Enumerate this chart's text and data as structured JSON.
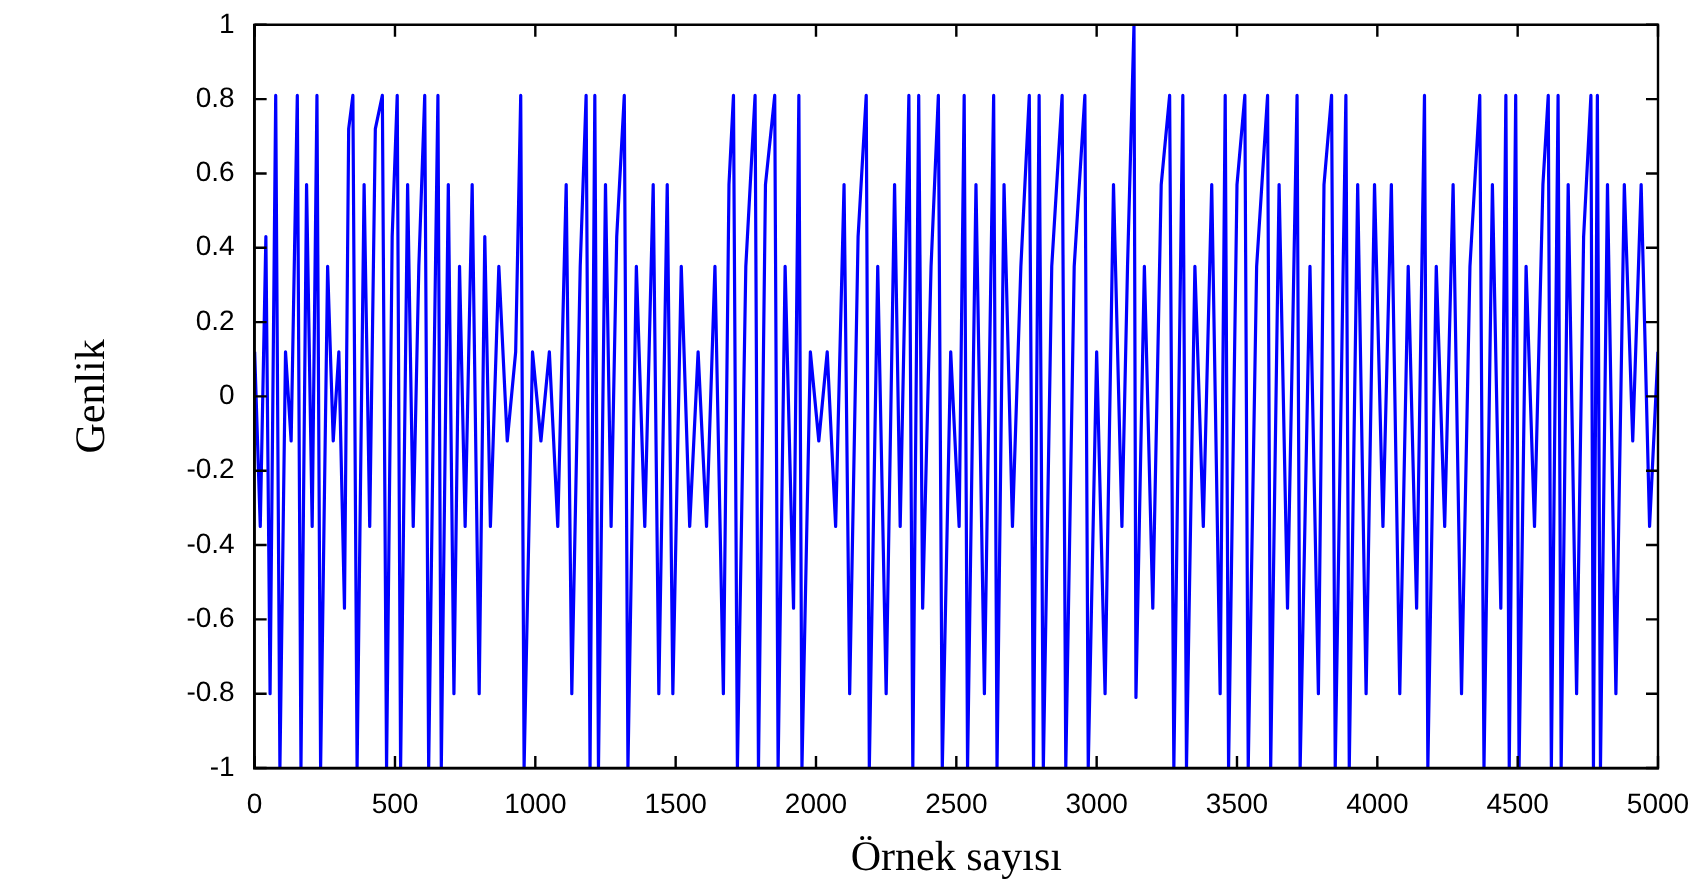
{
  "chart_data": {
    "type": "line",
    "xlabel": "Örnek sayısı",
    "ylabel": "Genlik",
    "xlim": [
      0,
      5000
    ],
    "xticks": [
      0,
      500,
      1000,
      1500,
      2000,
      2500,
      3000,
      3500,
      4000,
      4500,
      5000
    ],
    "ylim": [
      -1,
      1
    ],
    "yticks": [
      -1,
      -0.8,
      -0.6,
      -0.4,
      -0.2,
      0,
      0.2,
      0.4,
      0.6,
      0.8,
      1
    ],
    "marker": "none",
    "line_style": "solid",
    "series": [
      {
        "color": "#0000ff",
        "x": [
          0,
          20,
          40,
          55,
          75,
          90,
          110,
          130,
          152,
          165,
          185,
          205,
          222,
          235,
          260,
          280,
          300,
          320,
          335,
          350,
          365,
          390,
          410,
          430,
          455,
          470,
          490,
          508,
          520,
          545,
          565,
          585,
          606,
          620,
          640,
          653,
          665,
          690,
          710,
          730,
          750,
          775,
          800,
          820,
          840,
          870,
          900,
          930,
          948,
          960,
          990,
          1020,
          1050,
          1080,
          1110,
          1130,
          1160,
          1181,
          1195,
          1212,
          1225,
          1250,
          1270,
          1290,
          1317,
          1330,
          1360,
          1390,
          1420,
          1440,
          1470,
          1490,
          1520,
          1550,
          1580,
          1610,
          1640,
          1670,
          1690,
          1706,
          1720,
          1750,
          1783,
          1795,
          1820,
          1853,
          1865,
          1890,
          1920,
          1939,
          1950,
          1980,
          2010,
          2040,
          2070,
          2100,
          2120,
          2150,
          2179,
          2190,
          2220,
          2250,
          2280,
          2300,
          2331,
          2345,
          2366,
          2380,
          2410,
          2436,
          2450,
          2480,
          2510,
          2528,
          2540,
          2570,
          2600,
          2633,
          2645,
          2670,
          2700,
          2730,
          2760,
          2775,
          2795,
          2810,
          2840,
          2877,
          2890,
          2920,
          2958,
          2970,
          3000,
          3030,
          3060,
          3090,
          3110,
          3133,
          3140,
          3170,
          3200,
          3230,
          3260,
          3275,
          3307,
          3320,
          3350,
          3380,
          3410,
          3440,
          3458,
          3470,
          3500,
          3528,
          3540,
          3570,
          3609,
          3620,
          3650,
          3680,
          3714,
          3725,
          3760,
          3790,
          3810,
          3837,
          3850,
          3888,
          3900,
          3930,
          3960,
          3990,
          4020,
          4050,
          4080,
          4110,
          4140,
          4168,
          4180,
          4210,
          4240,
          4270,
          4300,
          4330,
          4365,
          4380,
          4410,
          4440,
          4458,
          4470,
          4493,
          4505,
          4530,
          4560,
          4590,
          4609,
          4620,
          4644,
          4655,
          4680,
          4710,
          4735,
          4761,
          4770,
          4784,
          4795,
          4820,
          4850,
          4880,
          4910,
          4940,
          4970,
          5000
        ],
        "values": [
          0.12,
          -0.35,
          0.43,
          -0.8,
          0.81,
          -1,
          0.12,
          -0.12,
          0.81,
          -1,
          0.57,
          -0.35,
          0.81,
          -1,
          0.35,
          -0.12,
          0.12,
          -0.57,
          0.72,
          0.81,
          -1,
          0.57,
          -0.35,
          0.72,
          0.81,
          -1,
          0.43,
          0.81,
          -1,
          0.57,
          -0.35,
          0.35,
          0.81,
          -1,
          0.12,
          0.81,
          -1,
          0.57,
          -0.8,
          0.35,
          -0.35,
          0.57,
          -0.8,
          0.43,
          -0.35,
          0.35,
          -0.12,
          0.12,
          0.81,
          -1,
          0.12,
          -0.12,
          0.12,
          -0.35,
          0.57,
          -0.8,
          0.35,
          0.81,
          -1,
          0.81,
          -1,
          0.57,
          -0.35,
          0.43,
          0.81,
          -1,
          0.35,
          -0.35,
          0.57,
          -0.8,
          0.57,
          -0.8,
          0.35,
          -0.35,
          0.12,
          -0.35,
          0.35,
          -0.8,
          0.57,
          0.81,
          -1,
          0.35,
          0.81,
          -1,
          0.57,
          0.81,
          -1,
          0.35,
          -0.57,
          0.81,
          -1,
          0.12,
          -0.12,
          0.12,
          -0.35,
          0.57,
          -0.8,
          0.43,
          0.81,
          -1,
          0.35,
          -0.8,
          0.57,
          -0.35,
          0.81,
          -1,
          0.81,
          -0.57,
          0.35,
          0.81,
          -1,
          0.12,
          -0.35,
          0.81,
          -1,
          0.57,
          -0.8,
          0.81,
          -1,
          0.57,
          -0.35,
          0.35,
          0.81,
          -1,
          0.81,
          -1,
          0.35,
          0.81,
          -1,
          0.35,
          0.81,
          -1,
          0.12,
          -0.8,
          0.57,
          -0.35,
          0.35,
          1,
          -0.81,
          0.35,
          -0.57,
          0.57,
          0.81,
          -1,
          0.81,
          -1,
          0.35,
          -0.35,
          0.57,
          -0.8,
          0.81,
          -1,
          0.57,
          0.81,
          -1,
          0.35,
          0.81,
          -1,
          0.57,
          -0.57,
          0.81,
          -1,
          0.35,
          -0.8,
          0.57,
          0.81,
          -1,
          0.81,
          -1,
          0.57,
          -0.8,
          0.57,
          -0.35,
          0.57,
          -0.8,
          0.35,
          -0.57,
          0.81,
          -1,
          0.35,
          -0.35,
          0.57,
          -0.8,
          0.35,
          0.81,
          -1,
          0.57,
          -0.57,
          0.81,
          -1,
          0.81,
          -1,
          0.35,
          -0.35,
          0.57,
          0.81,
          -1,
          0.81,
          -1,
          0.57,
          -0.8,
          0.43,
          0.81,
          -1,
          0.81,
          -1,
          0.57,
          -0.8,
          0.57,
          -0.12,
          0.57,
          -0.35,
          0.12
        ]
      }
    ]
  }
}
